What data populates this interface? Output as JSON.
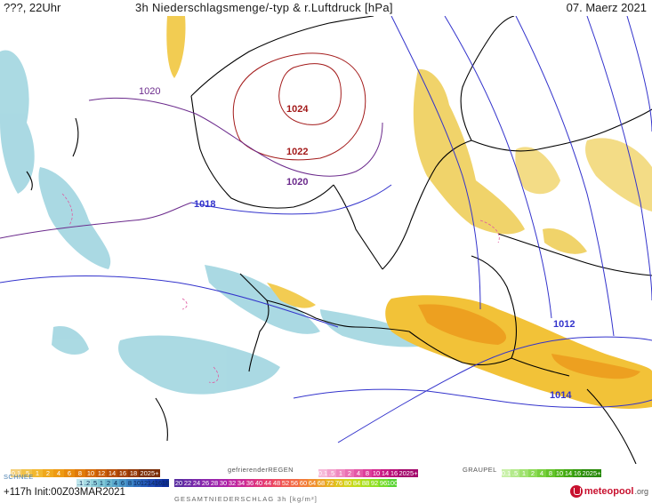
{
  "header": {
    "left": "???, 22Uhr",
    "title": "3h Niederschlagsmenge/-typ & r.Luftdruck [hPa]",
    "date": "07. Maerz 2021"
  },
  "isobars": {
    "labels": [
      "1020",
      "1024",
      "1022",
      "1020",
      "1018",
      "1012",
      "1014"
    ],
    "high_color": "#a31a1a",
    "mid_color": "#6b2a8c",
    "low_color": "#3333cc"
  },
  "legend": {
    "rain_title": "",
    "rain_values": [
      "0.1",
      ".5",
      "1",
      "2",
      "4",
      "6",
      "8",
      "10",
      "12",
      "14",
      "16",
      "18",
      "2025+"
    ],
    "rain_colors": [
      "#f3cf7a",
      "#f0c24a",
      "#f2b830",
      "#f0a81c",
      "#ee9a12",
      "#e88a0c",
      "#e07a08",
      "#d56a06",
      "#c85c06",
      "#b84e06",
      "#a64206",
      "#943806",
      "#7a2c06"
    ],
    "freezing_title": "gefrierenderREGEN",
    "freezing_values": [
      "0.1",
      ".5",
      "1",
      "2",
      "4",
      "8",
      "10",
      "14",
      "16",
      "2025+"
    ],
    "freezing_colors": [
      "#f6b8d8",
      "#f3a0cc",
      "#ef88c0",
      "#ea70b4",
      "#e458a8",
      "#dd409c",
      "#d42a90",
      "#c81a84",
      "#b80e78",
      "#a4086c"
    ],
    "graupel_title": "GRAUPEL",
    "graupel_values": [
      "0.1",
      ".5",
      "1",
      "2",
      "4",
      "8",
      "10",
      "14",
      "16",
      "2025+"
    ],
    "graupel_colors": [
      "#c8f0a8",
      "#b4ea8c",
      "#a0e270",
      "#8cda56",
      "#78d03e",
      "#64c42a",
      "#52b61c",
      "#42a812",
      "#349a0c",
      "#288a08"
    ],
    "snow_title": "SCHNEE",
    "snow_values": [
      ".1",
      ".2",
      ".5",
      "1",
      "2",
      "4",
      "6",
      "8",
      "10",
      "12",
      "14",
      "16",
      "18"
    ],
    "snow_colors": [
      "#bfe6ec",
      "#a8dce4",
      "#92d2dc",
      "#7ec6d6",
      "#6cb8d0",
      "#5aa8cc",
      "#4a96c8",
      "#3c84c4",
      "#3070c0",
      "#265cbc",
      "#1e4ab4",
      "#163aa8",
      "#0e2c9c"
    ],
    "total_values": [
      "20",
      "22",
      "24",
      "26",
      "28",
      "30",
      "32",
      "34",
      "36",
      "40",
      "44",
      "48",
      "52",
      "56",
      "60",
      "64",
      "68",
      "72",
      "76",
      "80",
      "84",
      "88",
      "92",
      "96",
      "100"
    ],
    "total_colors": [
      "#5a2ca0",
      "#6a2aa6",
      "#7a28aa",
      "#8a26ac",
      "#9a24ac",
      "#aa22a8",
      "#ba24a0",
      "#c82896",
      "#d42e8a",
      "#de367c",
      "#e6406e",
      "#ec4c60",
      "#f05a52",
      "#f26a46",
      "#f27c3a",
      "#f08e30",
      "#eca028",
      "#e6b222",
      "#dec41e",
      "#d2d41c",
      "#c0dc1c",
      "#aae01e",
      "#90e022",
      "#74dc28",
      "#58d430"
    ],
    "total_title": "GESAMTNIEDERSCHLAG 3h [kg/m²]",
    "lead_time": "+117h Init:00Z03MAR2021",
    "logo_text": "meteopool",
    "logo_ext": ".org"
  }
}
